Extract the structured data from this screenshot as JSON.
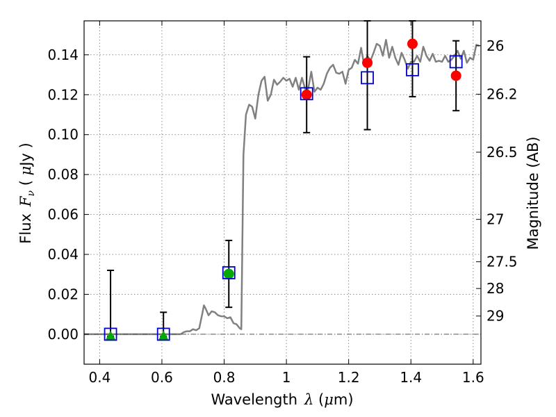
{
  "chart_data": {
    "type": "scatter",
    "xlabel_text": "Wavelength",
    "xlabel_symbol": "λ",
    "xlabel_unit_open": " (",
    "xlabel_unit_mu": "μ",
    "xlabel_unit_rest": "m)",
    "ylabel_text": "Flux",
    "ylabel_symbol": "F",
    "ylabel_sub": "ν",
    "ylabel_unit_open": " ( ",
    "ylabel_unit_mu": "μ",
    "ylabel_unit_rest": "Jy )",
    "y2label": "Magnitude (AB)",
    "xlim": [
      0.35,
      1.625
    ],
    "ylim": [
      -0.015,
      0.157
    ],
    "grid": true,
    "x_ticks": [
      "0.4",
      "0.6",
      "0.8",
      "1",
      "1.2",
      "1.4",
      "1.6"
    ],
    "y_ticks": [
      "0.00",
      "0.02",
      "0.04",
      "0.06",
      "0.08",
      "0.10",
      "0.12",
      "0.14"
    ],
    "mag_ticks": [
      "26",
      "26.2",
      "26.5",
      "27",
      "27.5",
      "28",
      "29"
    ],
    "zero_line": 0.0,
    "observed_points": {
      "marker": "circle",
      "color": "#ff0000",
      "x": [
        1.065,
        1.26,
        1.405,
        1.545
      ],
      "y": [
        0.12,
        0.136,
        0.1455,
        0.1295
      ]
    },
    "green_circle_points": {
      "marker": "circle",
      "color": "#00aa00",
      "x": [
        0.815
      ],
      "y": [
        0.0302
      ]
    },
    "upper_limit_points": {
      "marker": "triangle",
      "color": "#00aa00",
      "x": [
        0.435,
        0.605
      ],
      "y": [
        -0.001,
        -0.001
      ]
    },
    "model_photometry": {
      "marker": "open-square",
      "color": "#0000cc",
      "x": [
        0.435,
        0.605,
        0.815,
        1.065,
        1.26,
        1.405,
        1.545
      ],
      "y": [
        0.0,
        0.0,
        0.0308,
        0.1205,
        0.1285,
        0.1325,
        0.1365
      ]
    },
    "error_bars": [
      {
        "x": 0.435,
        "lo": -0.001,
        "hi": 0.032
      },
      {
        "x": 0.605,
        "lo": -0.001,
        "hi": 0.011
      },
      {
        "x": 0.815,
        "lo": 0.0135,
        "hi": 0.047
      },
      {
        "x": 1.065,
        "lo": 0.101,
        "hi": 0.139
      },
      {
        "x": 1.26,
        "lo": 0.1025,
        "hi": 0.157
      },
      {
        "x": 1.405,
        "lo": 0.119,
        "hi": 0.157
      },
      {
        "x": 1.545,
        "lo": 0.112,
        "hi": 0.147
      }
    ],
    "sed_model": {
      "color": "#808080",
      "x": [
        0.35,
        0.66,
        0.67,
        0.68,
        0.69,
        0.7,
        0.71,
        0.72,
        0.73,
        0.735,
        0.74,
        0.75,
        0.76,
        0.77,
        0.78,
        0.79,
        0.8,
        0.81,
        0.82,
        0.83,
        0.84,
        0.85,
        0.855,
        0.86,
        0.862,
        0.87,
        0.88,
        0.89,
        0.9,
        0.91,
        0.92,
        0.93,
        0.94,
        0.95,
        0.96,
        0.97,
        0.98,
        0.99,
        1.0,
        1.01,
        1.02,
        1.03,
        1.04,
        1.05,
        1.06,
        1.07,
        1.08,
        1.09,
        1.1,
        1.11,
        1.12,
        1.13,
        1.14,
        1.15,
        1.16,
        1.17,
        1.18,
        1.19,
        1.2,
        1.21,
        1.22,
        1.23,
        1.24,
        1.25,
        1.26,
        1.27,
        1.28,
        1.29,
        1.3,
        1.31,
        1.32,
        1.33,
        1.34,
        1.35,
        1.36,
        1.37,
        1.38,
        1.39,
        1.4,
        1.41,
        1.42,
        1.43,
        1.44,
        1.45,
        1.46,
        1.47,
        1.48,
        1.49,
        1.5,
        1.51,
        1.52,
        1.53,
        1.54,
        1.55,
        1.56,
        1.57,
        1.58,
        1.59,
        1.6,
        1.61,
        1.62
      ],
      "y": [
        0.0,
        0.0,
        0.001,
        0.0015,
        0.0015,
        0.0025,
        0.002,
        0.003,
        0.0105,
        0.0145,
        0.013,
        0.0095,
        0.0115,
        0.011,
        0.0095,
        0.009,
        0.009,
        0.008,
        0.0085,
        0.0055,
        0.005,
        0.003,
        0.0025,
        0.065,
        0.09,
        0.11,
        0.115,
        0.114,
        0.108,
        0.12,
        0.127,
        0.129,
        0.117,
        0.12,
        0.1275,
        0.125,
        0.1265,
        0.1285,
        0.127,
        0.128,
        0.124,
        0.1285,
        0.1225,
        0.1285,
        0.123,
        0.123,
        0.1315,
        0.1215,
        0.1235,
        0.1225,
        0.1255,
        0.1305,
        0.1335,
        0.135,
        0.131,
        0.1305,
        0.1315,
        0.1255,
        0.1325,
        0.1335,
        0.1375,
        0.1355,
        0.1435,
        0.1345,
        0.1395,
        0.137,
        0.141,
        0.1455,
        0.1445,
        0.1395,
        0.1475,
        0.1385,
        0.144,
        0.1385,
        0.135,
        0.141,
        0.1375,
        0.133,
        0.1365,
        0.1365,
        0.1395,
        0.1365,
        0.144,
        0.1395,
        0.137,
        0.1405,
        0.1365,
        0.137,
        0.1365,
        0.1395,
        0.1365,
        0.1375,
        0.1395,
        0.142,
        0.138,
        0.142,
        0.136,
        0.1385,
        0.1375,
        0.145,
        0.1445
      ]
    }
  }
}
